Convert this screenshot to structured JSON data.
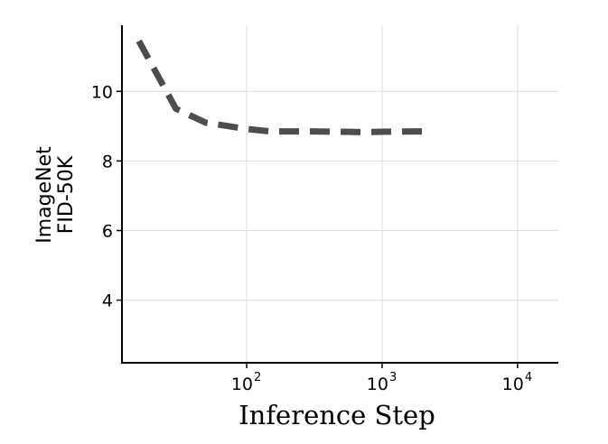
{
  "chart_data": {
    "type": "line",
    "title": "",
    "xlabel": "Inference Step",
    "ylabel_lines": [
      "ImageNet",
      "FID-50K"
    ],
    "x_scale": "log",
    "xlim": [
      12,
      20000
    ],
    "ylim": [
      2.2,
      11.9
    ],
    "grid": true,
    "legend": "none",
    "x_ticks": [
      {
        "value": 100,
        "base": "10",
        "exp": "2"
      },
      {
        "value": 1000,
        "base": "10",
        "exp": "3"
      },
      {
        "value": 10000,
        "base": "10",
        "exp": "4"
      }
    ],
    "y_ticks": [
      {
        "value": 4,
        "label": "4"
      },
      {
        "value": 6,
        "label": "6"
      },
      {
        "value": 8,
        "label": "8"
      },
      {
        "value": 10,
        "label": "10"
      }
    ],
    "series": [
      {
        "x": [
          16,
          30,
          50,
          100,
          150,
          200,
          300,
          500,
          700,
          1000,
          2000
        ],
        "y": [
          11.45,
          9.5,
          9.1,
          8.92,
          8.85,
          8.85,
          8.85,
          8.84,
          8.83,
          8.84,
          8.85
        ],
        "color": "#4d4d4d",
        "style": "dashed"
      }
    ],
    "colors": {
      "grid": "#dddddd",
      "axis": "#000000",
      "line": "#4d4d4d"
    }
  }
}
